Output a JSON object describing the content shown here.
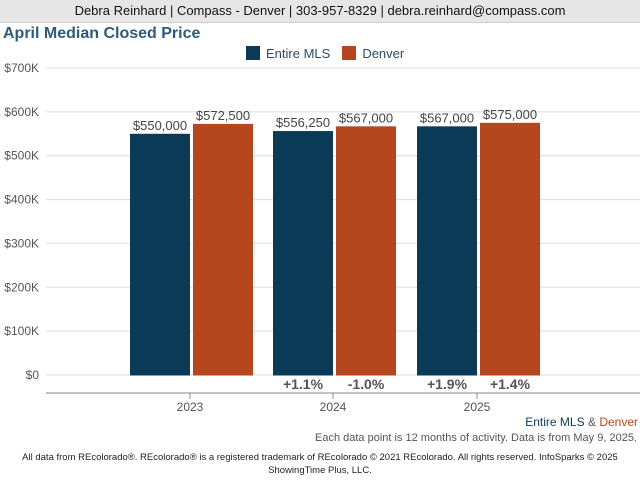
{
  "header": {
    "contact": "Debra Reinhard | Compass - Denver | 303-957-8329 | debra.reinhard@compass.com"
  },
  "colors": {
    "entire_mls": "#0b3a57",
    "denver": "#b5461e"
  },
  "chart_data": {
    "type": "bar",
    "title": "April Median Closed Price",
    "categories": [
      "2023",
      "2024",
      "2025"
    ],
    "series": [
      {
        "name": "Entire MLS",
        "values": [
          550000,
          556250,
          567000
        ],
        "labels": [
          "$550,000",
          "$556,250",
          "$567,000"
        ],
        "changes": [
          "",
          "+1.1%",
          "+1.9%"
        ]
      },
      {
        "name": "Denver",
        "values": [
          572500,
          567000,
          575000
        ],
        "labels": [
          "$572,500",
          "$567,000",
          "$575,000"
        ],
        "changes": [
          "",
          "-1.0%",
          "+1.4%"
        ]
      }
    ],
    "ylim": [
      0,
      700000
    ],
    "yticks": [
      0,
      100000,
      200000,
      300000,
      400000,
      500000,
      600000,
      700000
    ],
    "ytick_labels": [
      "$0",
      "$100K",
      "$200K",
      "$300K",
      "$400K",
      "$500K",
      "$600K",
      "$700K"
    ],
    "grid": true,
    "legend_position": "top-center"
  },
  "footer": {
    "legend_series_1": "Entire MLS",
    "legend_amp": "&",
    "legend_series_2": "Denver",
    "note": "Each data point is 12 months of activity. Data is from May 9, 2025.",
    "legal_line_1": "All data from REcolorado®. REcolorado® is a registered trademark of REcolorado © 2021 REcolorado. All rights reserved. InfoSparks © 2025",
    "legal_line_2": "ShowingTime Plus, LLC."
  }
}
